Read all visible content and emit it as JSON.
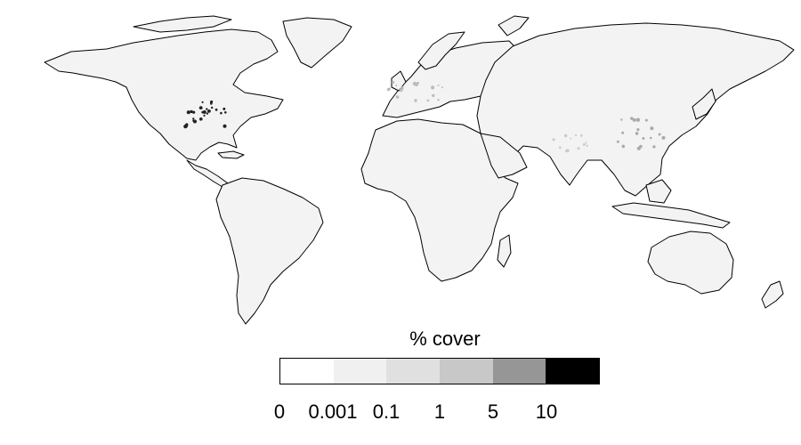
{
  "legend": {
    "title": "% cover",
    "tick_labels": [
      "0",
      "0.001",
      "0.1",
      "1",
      "5",
      "10"
    ],
    "bins": [
      {
        "range": "0 - 0.001",
        "color": "#ffffff"
      },
      {
        "range": "0.001 - 0.1",
        "color": "#f0f0f0"
      },
      {
        "range": "0.1 - 1",
        "color": "#e0e0e0"
      },
      {
        "range": "1 - 5",
        "color": "#c8c8c8"
      },
      {
        "range": "5 - 10",
        "color": "#969696"
      },
      {
        "range": "> 10",
        "color": "#000000"
      }
    ]
  },
  "map": {
    "land_fill": "#f3f3f3",
    "outline_color": "#000000",
    "hotspot_color": "#111111"
  }
}
